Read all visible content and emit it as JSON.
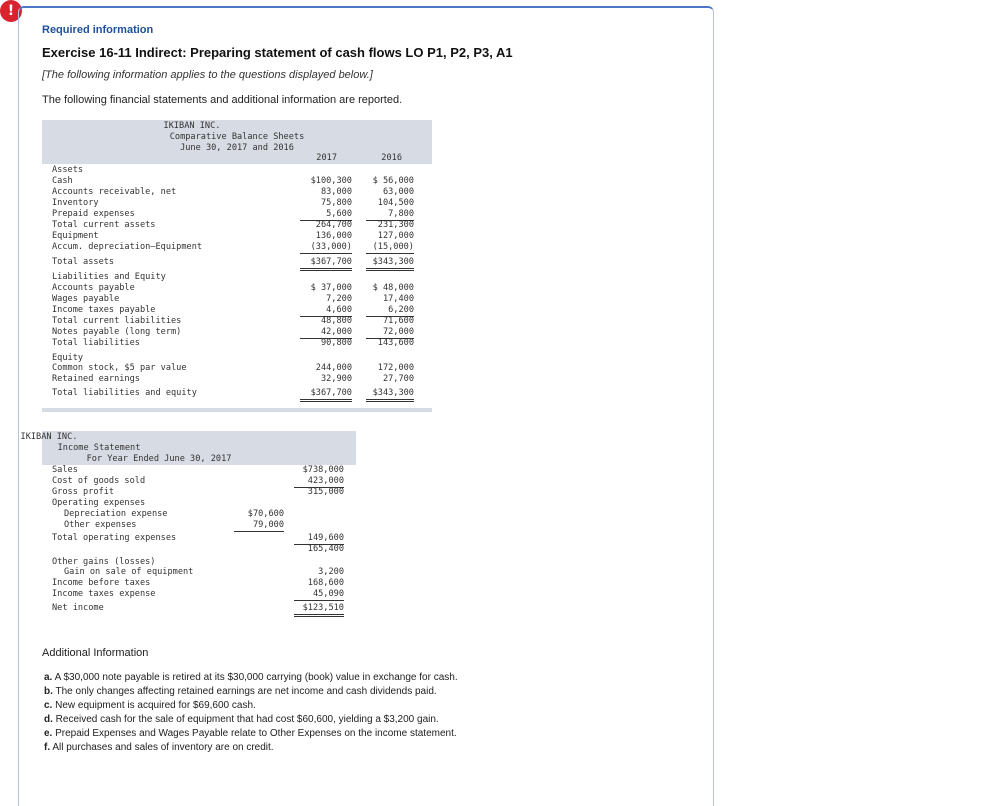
{
  "header": {
    "required": "Required information",
    "title": "Exercise 16-11 Indirect: Preparing statement of cash flows LO P1, P2, P3, A1",
    "note": "[The following information applies to the questions displayed below.]",
    "intro": "The following financial statements and additional information are reported."
  },
  "balance_sheet": {
    "company": "IKIBAN INC.",
    "name": "Comparative Balance Sheets",
    "period": "June 30, 2017 and 2016",
    "col_2017": "2017",
    "col_2016": "2016",
    "rows": [
      {
        "label": "Assets",
        "v2017": "",
        "v2016": ""
      },
      {
        "label": "Cash",
        "v2017": "$100,300",
        "v2016": "$ 56,000"
      },
      {
        "label": "Accounts receivable, net",
        "v2017": "83,000",
        "v2016": "63,000"
      },
      {
        "label": "Inventory",
        "v2017": "75,800",
        "v2016": "104,500"
      },
      {
        "label": "Prepaid expenses",
        "v2017": "5,600",
        "v2016": "7,800"
      },
      {
        "label": "Total current assets",
        "v2017": "264,700",
        "v2016": "231,300"
      },
      {
        "label": "Equipment",
        "v2017": "136,000",
        "v2016": "127,000"
      },
      {
        "label": "Accum. depreciation—Equipment",
        "v2017": "(33,000)",
        "v2016": "(15,000)"
      },
      {
        "label": "Total assets",
        "v2017": "$367,700",
        "v2016": "$343,300"
      },
      {
        "label": "Liabilities and Equity",
        "v2017": "",
        "v2016": ""
      },
      {
        "label": "Accounts payable",
        "v2017": "$ 37,000",
        "v2016": "$ 48,000"
      },
      {
        "label": "Wages payable",
        "v2017": "7,200",
        "v2016": "17,400"
      },
      {
        "label": "Income taxes payable",
        "v2017": "4,600",
        "v2016": "6,200"
      },
      {
        "label": "Total current liabilities",
        "v2017": "48,800",
        "v2016": "71,600"
      },
      {
        "label": "Notes payable (long term)",
        "v2017": "42,000",
        "v2016": "72,000"
      },
      {
        "label": "Total liabilities",
        "v2017": "90,800",
        "v2016": "143,600"
      },
      {
        "label": "Equity",
        "v2017": "",
        "v2016": ""
      },
      {
        "label": "Common stock, $5 par value",
        "v2017": "244,000",
        "v2016": "172,000"
      },
      {
        "label": "Retained earnings",
        "v2017": "32,900",
        "v2016": "27,700"
      },
      {
        "label": "Total liabilities and equity",
        "v2017": "$367,700",
        "v2016": "$343,300"
      }
    ]
  },
  "income_statement": {
    "company": "IKIBAN INC.",
    "name": "Income Statement",
    "period": "For Year Ended June 30, 2017",
    "rows": [
      {
        "label": "Sales",
        "inner": "",
        "outer": "$738,000"
      },
      {
        "label": "Cost of goods sold",
        "inner": "",
        "outer": "423,000"
      },
      {
        "label": "Gross profit",
        "inner": "",
        "outer": "315,000"
      },
      {
        "label": "Operating expenses",
        "inner": "",
        "outer": ""
      },
      {
        "label": "Depreciation expense",
        "inner": "$70,600",
        "outer": ""
      },
      {
        "label": "Other expenses",
        "inner": "79,000",
        "outer": ""
      },
      {
        "label": "Total operating expenses",
        "inner": "",
        "outer": "149,600"
      },
      {
        "label": "",
        "inner": "",
        "outer": "165,400"
      },
      {
        "label": "Other gains (losses)",
        "inner": "",
        "outer": ""
      },
      {
        "label": "Gain on sale of equipment",
        "inner": "",
        "outer": "3,200"
      },
      {
        "label": "Income before taxes",
        "inner": "",
        "outer": "168,600"
      },
      {
        "label": "Income taxes expense",
        "inner": "",
        "outer": "45,090"
      },
      {
        "label": "Net income",
        "inner": "",
        "outer": "$123,510"
      }
    ]
  },
  "additional": {
    "title": "Additional Information",
    "items": [
      {
        "key": "a.",
        "text": "A $30,000 note payable is retired at its $30,000 carrying (book) value in exchange for cash."
      },
      {
        "key": "b.",
        "text": "The only changes affecting retained earnings are net income and cash dividends paid."
      },
      {
        "key": "c.",
        "text": "New equipment is acquired for $69,600 cash."
      },
      {
        "key": "d.",
        "text": "Received cash for the sale of equipment that had cost $60,600, yielding a $3,200 gain."
      },
      {
        "key": "e.",
        "text": "Prepaid Expenses and Wages Payable relate to Other Expenses on the income statement."
      },
      {
        "key": "f.",
        "text": "All purchases and sales of inventory are on credit."
      }
    ]
  }
}
